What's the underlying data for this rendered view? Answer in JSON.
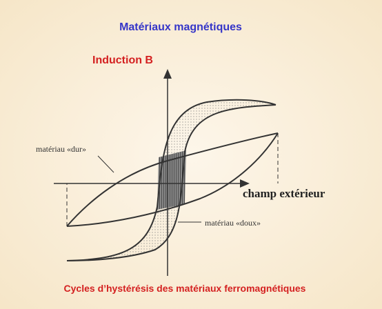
{
  "header": {
    "title": "Matériaux magnétiques"
  },
  "diagram": {
    "y_axis_label": "Induction B",
    "x_axis_label": "champ extérieur",
    "labels": [
      "matériau «dur»",
      "matériau «doux»"
    ]
  },
  "caption": "Cycles d’hystérésis des matériaux ferromagnétiques"
}
